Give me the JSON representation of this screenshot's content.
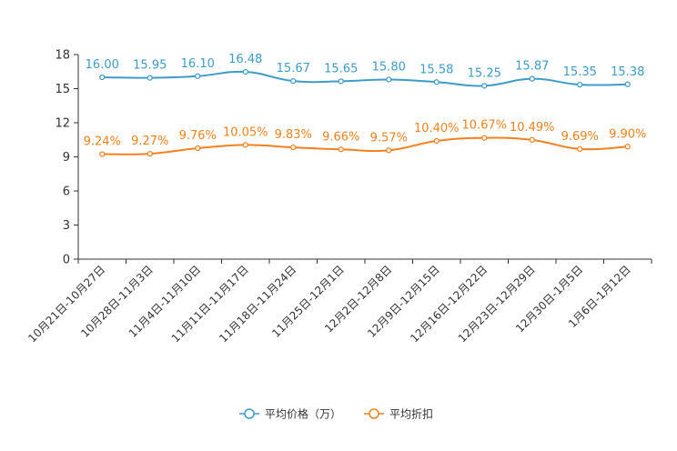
{
  "chart_data": {
    "type": "line",
    "categories": [
      "10月21日-10月27日",
      "10月28日-11月3日",
      "11月4日-11月10日",
      "11月11日-11月17日",
      "11月18日-11月24日",
      "11月25日-12月1日",
      "12月2日-12月8日",
      "12月9日-12月15日",
      "12月16日-12月22日",
      "12月23日-12月29日",
      "12月30日-1月5日",
      "1月6日-1月12日"
    ],
    "series": [
      {
        "name": "平均价格（万）",
        "color": "#3d9ccc",
        "values": [
          16.0,
          15.95,
          16.1,
          16.48,
          15.67,
          15.65,
          15.8,
          15.58,
          15.25,
          15.87,
          15.35,
          15.38
        ],
        "labels": [
          "16.00",
          "15.95",
          "16.10",
          "16.48",
          "15.67",
          "15.65",
          "15.80",
          "15.58",
          "15.25",
          "15.87",
          "15.35",
          "15.38"
        ]
      },
      {
        "name": "平均折扣",
        "color": "#f5801e",
        "values": [
          9.24,
          9.27,
          9.76,
          10.05,
          9.83,
          9.66,
          9.57,
          10.4,
          10.67,
          10.49,
          9.69,
          9.9
        ],
        "labels": [
          "9.24%",
          "9.27%",
          "9.76%",
          "10.05%",
          "9.83%",
          "9.66%",
          "9.57%",
          "10.40%",
          "10.67%",
          "10.49%",
          "9.69%",
          "9.90%"
        ]
      }
    ],
    "yticks": [
      "0",
      "3",
      "6",
      "9",
      "12",
      "15",
      "18"
    ],
    "ylim": [
      0,
      18
    ],
    "title": "",
    "xlabel": "",
    "ylabel": "",
    "legend": "bottom-center"
  }
}
